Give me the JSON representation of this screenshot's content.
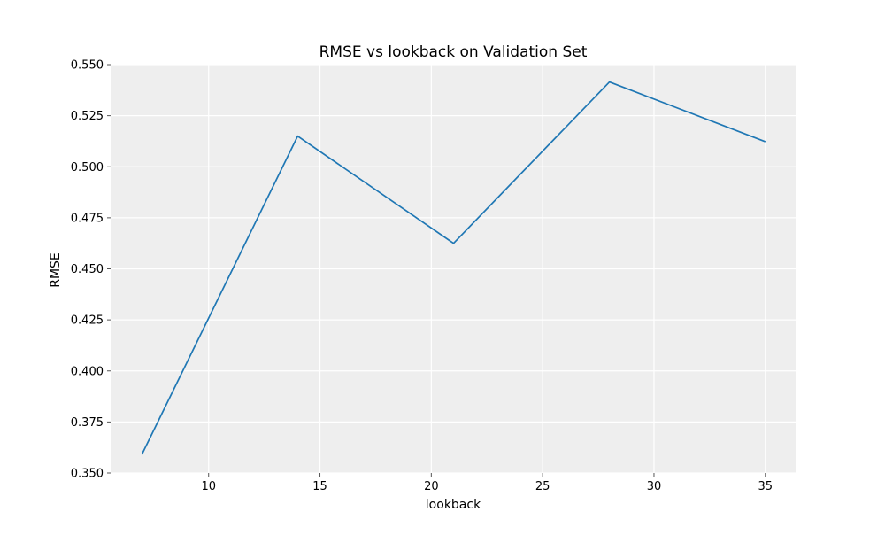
{
  "chart_data": {
    "type": "line",
    "title": "RMSE vs lookback on Validation Set",
    "xlabel": "lookback",
    "ylabel": "RMSE",
    "x": [
      7,
      14,
      21,
      28,
      35
    ],
    "series": [
      {
        "values": [
          0.359,
          0.515,
          0.4625,
          0.5415,
          0.5123
        ],
        "color": "#1f77b4"
      }
    ],
    "xlim": [
      5.6,
      36.4
    ],
    "ylim": [
      0.35,
      0.55
    ],
    "xticks": [
      10,
      15,
      20,
      25,
      30,
      35
    ],
    "xtick_labels": [
      "10",
      "15",
      "20",
      "25",
      "30",
      "35"
    ],
    "yticks": [
      0.35,
      0.375,
      0.4,
      0.425,
      0.45,
      0.475,
      0.5,
      0.525,
      0.55
    ],
    "ytick_labels": [
      "0.350",
      "0.375",
      "0.400",
      "0.425",
      "0.450",
      "0.475",
      "0.500",
      "0.525",
      "0.550"
    ],
    "grid": true,
    "background_color": "#eeeeee",
    "legend": null
  }
}
